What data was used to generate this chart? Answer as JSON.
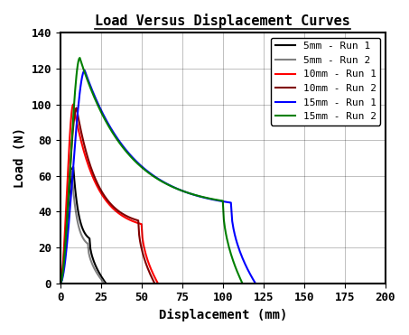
{
  "title": "Load Versus Displacement Curves",
  "xlabel": "Displacement (mm)",
  "ylabel": "Load (N)",
  "xlim": [
    0,
    200
  ],
  "ylim": [
    0,
    140
  ],
  "xticks": [
    0,
    25,
    50,
    75,
    100,
    125,
    150,
    175,
    200
  ],
  "yticks": [
    0,
    20,
    40,
    60,
    80,
    100,
    120,
    140
  ],
  "series": [
    {
      "label": "5mm - Run 1",
      "color": "#000000",
      "peak_x": 8,
      "peak_y": 65,
      "end_x": 28,
      "plateau_y": 25,
      "plateau_start": 18
    },
    {
      "label": "5mm - Run 2",
      "color": "#808080",
      "peak_x": 7,
      "peak_y": 63,
      "end_x": 27,
      "plateau_y": 22,
      "plateau_start": 17
    },
    {
      "label": "10mm - Run 1",
      "color": "#ff0000",
      "peak_x": 8,
      "peak_y": 100,
      "end_x": 60,
      "plateau_y": 33,
      "plateau_start": 50
    },
    {
      "label": "10mm - Run 2",
      "color": "#800000",
      "peak_x": 10,
      "peak_y": 98,
      "end_x": 58,
      "plateau_y": 35,
      "plateau_start": 48
    },
    {
      "label": "15mm - Run 1",
      "color": "#0000ff",
      "peak_x": 15,
      "peak_y": 119,
      "end_x": 120,
      "plateau_y": 45,
      "plateau_start": 105
    },
    {
      "label": "15mm - Run 2",
      "color": "#008000",
      "peak_x": 12,
      "peak_y": 126,
      "end_x": 112,
      "plateau_y": 46,
      "plateau_start": 100
    }
  ],
  "background_color": "#ffffff",
  "grid_color": "#000000",
  "title_fontsize": 11,
  "label_fontsize": 10,
  "tick_fontsize": 9,
  "legend_fontsize": 8
}
